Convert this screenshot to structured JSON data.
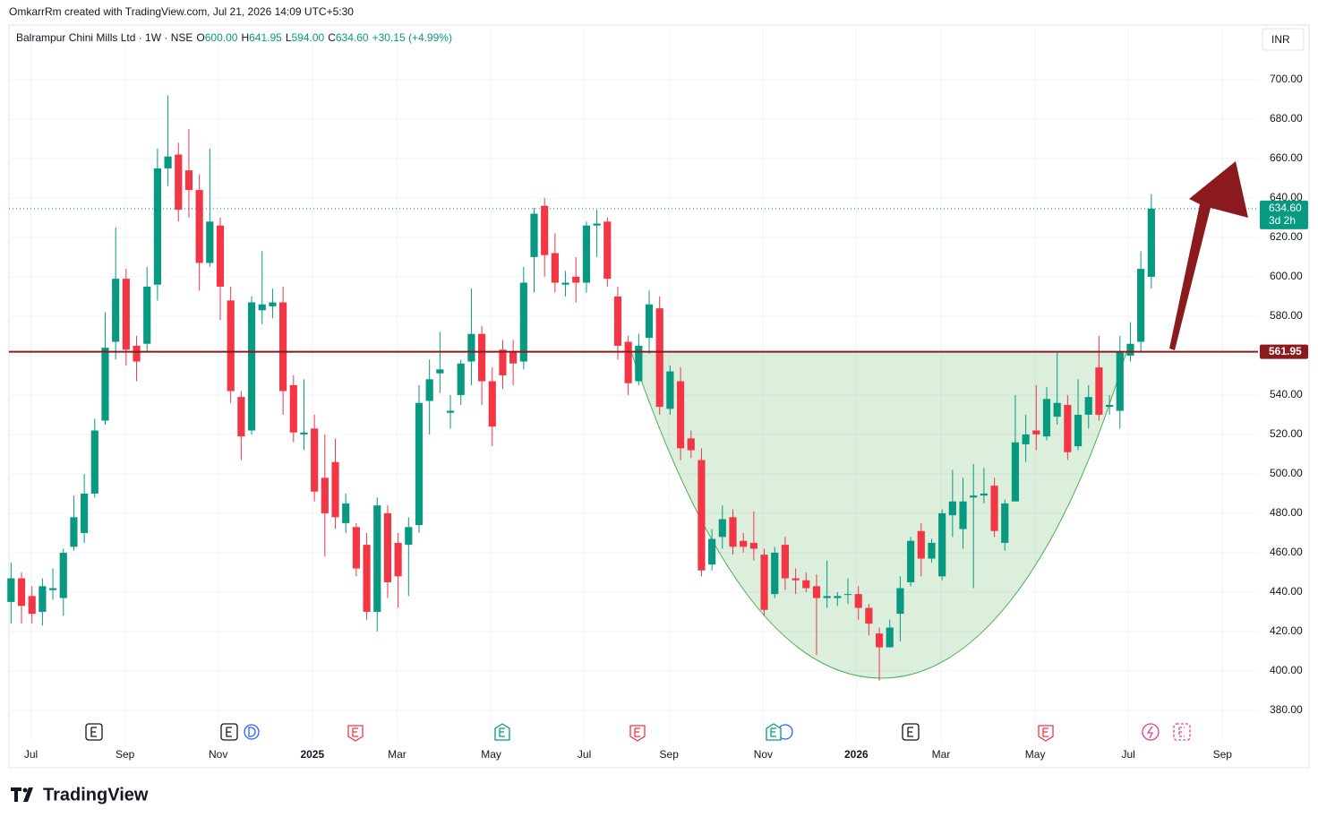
{
  "header": "OmkarrRm created with TradingView.com, Jul 21, 2026 14:09 UTC+5:30",
  "brand": "TradingView",
  "chart_data": {
    "type": "candlestick",
    "legend": {
      "title": "Balrampur Chini Mills Ltd · 1W · NSE",
      "items": [
        {
          "key": "O",
          "value": "600.00"
        },
        {
          "key": "H",
          "value": "641.95"
        },
        {
          "key": "L",
          "value": "594.00"
        },
        {
          "key": "C",
          "value": "634.60"
        }
      ],
      "change": "+30.15 (+4.99%)"
    },
    "currency": "INR",
    "up_color": "#089981",
    "down_color": "#f23645",
    "open": [
      435,
      447,
      438,
      430,
      441,
      437,
      463,
      470,
      490,
      527,
      567,
      599,
      565,
      566,
      596,
      655,
      662,
      654,
      644,
      607,
      626,
      588,
      539,
      522,
      583,
      585,
      587,
      545,
      520,
      523,
      498,
      506,
      475,
      473,
      464,
      430,
      480,
      465,
      464,
      474,
      537,
      551,
      531,
      540,
      557,
      571,
      547,
      563,
      562,
      557,
      610,
      636,
      612,
      596,
      600,
      597,
      626,
      628,
      590,
      567,
      547,
      569,
      584,
      533,
      547,
      518,
      507,
      454,
      468,
      478,
      466,
      465,
      459,
      439,
      464,
      447,
      446,
      443,
      437,
      437,
      439,
      439,
      432,
      419,
      412,
      429,
      445,
      471,
      457,
      448,
      479,
      472,
      488,
      489,
      494,
      465,
      486,
      515,
      522,
      519,
      529,
      535,
      514,
      530,
      554,
      534,
      532,
      560,
      567,
      600
    ],
    "high": [
      455,
      450,
      443,
      447,
      452,
      462,
      489,
      500,
      528,
      582,
      625,
      604,
      570,
      605,
      665,
      692,
      668,
      675,
      652,
      665,
      630,
      595,
      542,
      590,
      613,
      594,
      595,
      550,
      548,
      530,
      520,
      518,
      490,
      475,
      470,
      488,
      484,
      470,
      478,
      545,
      558,
      572,
      540,
      558,
      594,
      575,
      554,
      568,
      568,
      605,
      635,
      640,
      622,
      603,
      610,
      628,
      634,
      630,
      595,
      570,
      571,
      593,
      590,
      555,
      554,
      522,
      513,
      472,
      484,
      482,
      470,
      481,
      462,
      463,
      468,
      452,
      450,
      449,
      456,
      440,
      447,
      443,
      434,
      422,
      426,
      448,
      468,
      475,
      467,
      482,
      502,
      498,
      505,
      503,
      498,
      487,
      540,
      530,
      545,
      544,
      562,
      540,
      548,
      545,
      570,
      540,
      570,
      577,
      613,
      641.95
    ],
    "low": [
      424,
      424,
      424,
      423,
      436,
      428,
      461,
      465,
      488,
      525,
      558,
      555,
      547,
      562,
      588,
      646,
      628,
      630,
      593,
      605,
      578,
      536,
      507,
      520,
      576,
      579,
      530,
      516,
      512,
      486,
      458,
      472,
      470,
      448,
      426,
      420,
      437,
      432,
      438,
      470,
      520,
      541,
      523,
      535,
      545,
      535,
      514,
      543,
      545,
      553,
      592,
      600,
      592,
      590,
      587,
      592,
      610,
      595,
      558,
      540,
      545,
      561,
      530,
      530,
      507,
      508,
      448,
      451,
      462,
      459,
      460,
      456,
      428,
      437,
      441,
      439,
      440,
      408,
      432,
      433,
      434,
      426,
      418,
      395,
      414,
      415,
      443,
      448,
      455,
      446,
      468,
      462,
      442,
      485,
      468,
      461,
      486,
      506,
      512,
      517,
      525,
      507,
      512,
      523,
      527,
      530,
      523,
      557,
      562,
      594
    ],
    "close": [
      447,
      433,
      429,
      443,
      442,
      460,
      478,
      490,
      522,
      564,
      599,
      563,
      557,
      595,
      655,
      661,
      634,
      644,
      607,
      628,
      595,
      542,
      519,
      587,
      586,
      587,
      542,
      521,
      521,
      491,
      480,
      478,
      485,
      452,
      430,
      484,
      445,
      448,
      473,
      536,
      548,
      553,
      532,
      556,
      571,
      547,
      524,
      550,
      556,
      597,
      632,
      611,
      597,
      597,
      597,
      626,
      627,
      599,
      565,
      546,
      565,
      586,
      534,
      552,
      513,
      512,
      451,
      467,
      477,
      463,
      463,
      462,
      431,
      460,
      447,
      446,
      442,
      437,
      438,
      438,
      439,
      432,
      424,
      412,
      422,
      442,
      466,
      457,
      465,
      480,
      486,
      486,
      489,
      490,
      471,
      485,
      516,
      520,
      520,
      538,
      536,
      511,
      530,
      539,
      530,
      535,
      562,
      566,
      604,
      634.6
    ],
    "xlim": [
      -0.2,
      119.2
    ],
    "xticks": [
      {
        "value": 1.9,
        "label": "Jul"
      },
      {
        "value": 10.9,
        "label": "Sep"
      },
      {
        "value": 19.8,
        "label": "Nov"
      },
      {
        "value": 28.8,
        "label": "2025"
      },
      {
        "value": 36.9,
        "label": "Mar"
      },
      {
        "value": 45.9,
        "label": "May"
      },
      {
        "value": 54.8,
        "label": "Jul"
      },
      {
        "value": 62.9,
        "label": "Sep"
      },
      {
        "value": 71.9,
        "label": "Nov"
      },
      {
        "value": 80.8,
        "label": "2026"
      },
      {
        "value": 88.9,
        "label": "Mar"
      },
      {
        "value": 97.9,
        "label": "May"
      },
      {
        "value": 106.8,
        "label": "Jul"
      },
      {
        "value": 115.8,
        "label": "Sep"
      }
    ],
    "ylim": [
      368.6,
      727.7
    ],
    "yticks": [
      {
        "value": 380,
        "label": "380.00"
      },
      {
        "value": 400,
        "label": "400.00"
      },
      {
        "value": 420,
        "label": "420.00"
      },
      {
        "value": 440,
        "label": "440.00"
      },
      {
        "value": 460,
        "label": "460.00"
      },
      {
        "value": 480,
        "label": "480.00"
      },
      {
        "value": 500,
        "label": "500.00"
      },
      {
        "value": 520,
        "label": "520.00"
      },
      {
        "value": 540,
        "label": "540.00"
      },
      {
        "value": 560,
        "label": "560.00"
      },
      {
        "value": 580,
        "label": "580.00"
      },
      {
        "value": 600,
        "label": "600.00"
      },
      {
        "value": 620,
        "label": "620.00"
      },
      {
        "value": 640,
        "label": "640.00"
      },
      {
        "value": 660,
        "label": "660.00"
      },
      {
        "value": 680,
        "label": "680.00"
      },
      {
        "value": 700,
        "label": "700.00"
      }
    ],
    "grid": true,
    "level": {
      "value": 561.95,
      "label": "561.95",
      "color": "#8b1a1f"
    },
    "last_price": {
      "value": 634.6,
      "label": "634.60",
      "countdown": "3d 2h"
    }
  }
}
